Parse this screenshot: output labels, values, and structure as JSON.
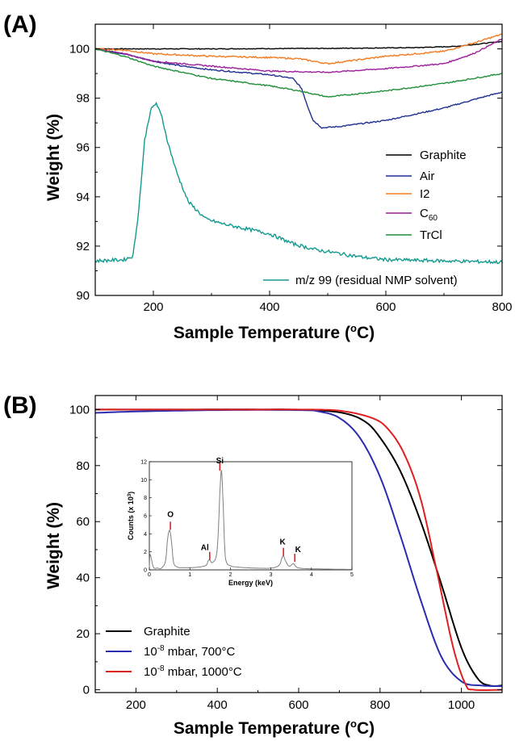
{
  "chart_data": [
    {
      "panel_label": "(A)",
      "type": "line",
      "xlabel": "Sample Temperature",
      "xunit": "(°C)",
      "ylabel": "Weight (%)",
      "xlim": [
        100,
        800
      ],
      "ylim": [
        90,
        101
      ],
      "xticks": [
        "200",
        "400",
        "600",
        "800"
      ],
      "yticks": [
        "90",
        "92",
        "94",
        "96",
        "98",
        "100"
      ],
      "legend_position": "right",
      "series": [
        {
          "name": "Graphite",
          "color": "#000000",
          "x": [
            100,
            300,
            500,
            650,
            720,
            800
          ],
          "y": [
            100,
            100,
            100.02,
            100.05,
            100.1,
            100.3
          ]
        },
        {
          "name": "Air",
          "color": "#1f2f8f",
          "x": [
            100,
            150,
            200,
            250,
            300,
            350,
            400,
            440,
            455,
            465,
            475,
            490,
            520,
            600,
            700,
            760,
            800
          ],
          "y": [
            100,
            99.8,
            99.5,
            99.3,
            99.15,
            99.05,
            98.95,
            98.8,
            98.4,
            97.7,
            97.1,
            96.8,
            96.85,
            97.1,
            97.6,
            98.0,
            98.25
          ]
        },
        {
          "name": "I2",
          "color": "#f07b20",
          "x": [
            100,
            150,
            200,
            300,
            400,
            450,
            500,
            600,
            700,
            760,
            800
          ],
          "y": [
            100,
            99.95,
            99.8,
            99.7,
            99.65,
            99.6,
            99.4,
            99.7,
            99.9,
            100.3,
            100.6
          ]
        },
        {
          "name": "C60",
          "name_prefix": "C",
          "name_sub": "60",
          "color": "#9a1f9a",
          "x": [
            100,
            150,
            200,
            300,
            400,
            500,
            600,
            700,
            750,
            800
          ],
          "y": [
            100,
            99.8,
            99.5,
            99.3,
            99.1,
            99.05,
            99.2,
            99.4,
            99.8,
            100.4
          ]
        },
        {
          "name": "TrCl",
          "color": "#1f8f3a",
          "x": [
            100,
            150,
            200,
            300,
            400,
            450,
            500,
            600,
            700,
            800
          ],
          "y": [
            100,
            99.7,
            99.3,
            98.8,
            98.5,
            98.3,
            98.05,
            98.3,
            98.6,
            99.0
          ]
        },
        {
          "name": "m/z 99 (residual NMP solvent)",
          "color": "#129a8f",
          "x": [
            100,
            150,
            165,
            175,
            185,
            195,
            205,
            215,
            225,
            240,
            260,
            290,
            320,
            360,
            400,
            440,
            480,
            520,
            560,
            600,
            700,
            800
          ],
          "y": [
            91.4,
            91.45,
            91.6,
            93.5,
            96.3,
            97.5,
            97.8,
            97.2,
            96.2,
            95.0,
            93.8,
            93.1,
            92.9,
            92.7,
            92.5,
            92.1,
            91.85,
            91.7,
            91.55,
            91.45,
            91.4,
            91.35
          ]
        }
      ]
    },
    {
      "panel_label": "(B)",
      "type": "line",
      "xlabel": "Sample Temperature",
      "xunit": "(°C)",
      "ylabel": "Weight (%)",
      "xlim": [
        100,
        1100
      ],
      "ylim": [
        -1,
        105
      ],
      "xticks": [
        "200",
        "400",
        "600",
        "800",
        "1000"
      ],
      "yticks": [
        "0",
        "20",
        "40",
        "60",
        "80",
        "100"
      ],
      "legend_position": "bottom-left",
      "series": [
        {
          "name": "Graphite",
          "color": "#000000",
          "x": [
            100,
            300,
            500,
            600,
            700,
            760,
            800,
            850,
            900,
            950,
            1000,
            1040,
            1070,
            1100
          ],
          "y": [
            100,
            100,
            100,
            99.9,
            99,
            96,
            90,
            78,
            60,
            38,
            15,
            4,
            1.5,
            1.5
          ]
        },
        {
          "name": "10-8 mbar, 700°C",
          "name_base": "10",
          "name_sup": "-8",
          "name_rest": " mbar, 700°C",
          "color": "#2b2bb0",
          "x": [
            100,
            200,
            400,
            600,
            650,
            700,
            750,
            800,
            850,
            900,
            950,
            1000,
            1050,
            1100
          ],
          "y": [
            98.8,
            99.3,
            99.8,
            99.8,
            99.3,
            97,
            90,
            76,
            55,
            32,
            12,
            3,
            1.5,
            1.3
          ]
        },
        {
          "name": "10-8 mbar, 1000°C",
          "name_base": "10",
          "name_sup": "-8",
          "name_rest": " mbar, 1000°C",
          "color": "#e02020",
          "x": [
            100,
            300,
            500,
            600,
            700,
            780,
            820,
            860,
            900,
            940,
            980,
            1010,
            1030,
            1100
          ],
          "y": [
            100,
            100,
            100,
            100,
            99.6,
            97,
            93,
            84,
            68,
            42,
            15,
            2,
            0,
            0
          ]
        }
      ],
      "inset": {
        "type": "line",
        "xlabel": "Energy (keV)",
        "ylabel": "Counts (x 10",
        "ylabel_sup": "3",
        "ylabel_end": ")",
        "xlim": [
          0,
          5
        ],
        "ylim": [
          0,
          12
        ],
        "xticks": [
          "0",
          "1",
          "2",
          "3",
          "4",
          "5"
        ],
        "yticks": [
          "0",
          "2",
          "4",
          "6",
          "8",
          "10",
          "12"
        ],
        "series": {
          "color": "#7f7f7f",
          "x": [
            0,
            0.02,
            0.1,
            0.2,
            0.3,
            0.4,
            0.45,
            0.5,
            0.55,
            0.6,
            0.7,
            0.8,
            1.0,
            1.2,
            1.4,
            1.45,
            1.49,
            1.55,
            1.65,
            1.7,
            1.74,
            1.78,
            1.82,
            1.86,
            1.9,
            2.0,
            2.2,
            2.6,
            3.0,
            3.2,
            3.27,
            3.31,
            3.36,
            3.45,
            3.55,
            3.6,
            3.7,
            4.0,
            4.5,
            5.0
          ],
          "y": [
            0,
            1.7,
            0.3,
            0.2,
            0.2,
            1.0,
            3.4,
            4.4,
            3.0,
            0.8,
            0.3,
            0.25,
            0.25,
            0.3,
            0.5,
            1.0,
            1.1,
            0.8,
            1.5,
            4.0,
            8.5,
            11.0,
            7.5,
            2.5,
            0.9,
            0.45,
            0.3,
            0.2,
            0.2,
            0.5,
            1.3,
            1.55,
            1.0,
            0.4,
            0.7,
            0.45,
            0.2,
            0.12,
            0.08,
            0.05
          ]
        },
        "peaks": [
          {
            "label": "O",
            "x": 0.52,
            "y": 4.45
          },
          {
            "label": "Al",
            "x": 1.49,
            "y": 1.1
          },
          {
            "label": "Si",
            "x": 1.74,
            "y": 11.0
          },
          {
            "label": "K",
            "x": 3.31,
            "y": 1.55
          },
          {
            "label": "K",
            "x": 3.59,
            "y": 0.9
          }
        ]
      }
    }
  ]
}
